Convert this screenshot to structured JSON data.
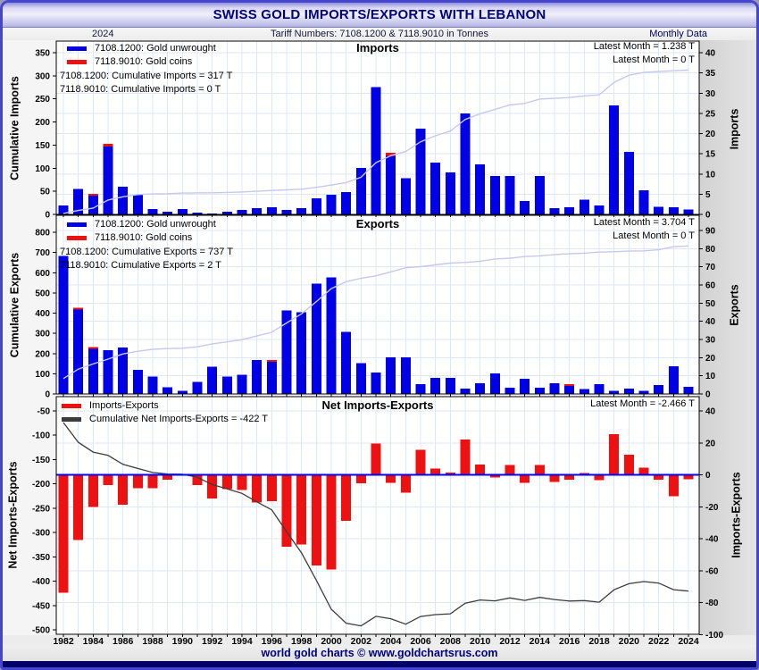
{
  "header": {
    "title": "SWISS GOLD IMPORTS/EXPORTS WITH LEBANON"
  },
  "subheader": {
    "year": "2024",
    "tariff": "Tariff Numbers: 7108.1200 & 7118.9010 in Tonnes",
    "frequency": "Monthly Data"
  },
  "footer": {
    "credit": "world gold charts © www.goldchartsrus.com"
  },
  "colors": {
    "gold_unwrought": "#0000e6",
    "gold_coins": "#ee1111",
    "net_bars": "#ee1111",
    "cumulative_light": "#c8c8ee",
    "cumulative_dark": "#3c3c3c",
    "zero_line": "#0000ff",
    "grid": "#dce8f5",
    "navy": "#000080"
  },
  "years": [
    1982,
    1983,
    1984,
    1985,
    1986,
    1987,
    1988,
    1989,
    1990,
    1991,
    1992,
    1993,
    1994,
    1995,
    1996,
    1997,
    1998,
    1999,
    2000,
    2001,
    2002,
    2003,
    2004,
    2005,
    2006,
    2007,
    2008,
    2009,
    2010,
    2011,
    2012,
    2013,
    2014,
    2015,
    2016,
    2017,
    2018,
    2019,
    2020,
    2021,
    2022,
    2023,
    2024
  ],
  "x_tick_labels": [
    "1982",
    "1984",
    "1986",
    "1988",
    "1990",
    "1992",
    "1994",
    "1996",
    "1998",
    "2000",
    "2002",
    "2004",
    "2006",
    "2008",
    "2010",
    "2012",
    "2014",
    "2016",
    "2018",
    "2020",
    "2022",
    "2024"
  ],
  "chart_data": [
    {
      "type": "bar",
      "title": "Imports",
      "legend": [
        {
          "label": "7108.1200: Gold unwrought",
          "color_key": "gold_unwrought"
        },
        {
          "label": "7118.9010: Gold coins",
          "color_key": "gold_coins"
        }
      ],
      "annotations": [
        "7108.1200: Cumulative Imports = 317 T",
        "7118.9010: Cumulative Imports = 0 T"
      ],
      "latest": [
        "Latest Month = 1.238 T",
        "Latest Month = 0 T"
      ],
      "left_axis": {
        "label": "Cumulative Imports",
        "min": 0,
        "max": 350,
        "step": 50
      },
      "right_axis": {
        "label": "Imports",
        "min": 0,
        "max": 40,
        "step": 5
      },
      "series": [
        {
          "name": "7108.1200 Gold unwrought (T)",
          "values": [
            2.2,
            6.3,
            4.6,
            16.8,
            6.9,
            4.9,
            1.3,
            0.7,
            1.3,
            0.4,
            0.2,
            0.7,
            1.1,
            1.5,
            1.8,
            1.1,
            1.5,
            4.0,
            4.9,
            5.5,
            11.5,
            31.5,
            14.5,
            9.0,
            21.2,
            12.8,
            10.4,
            25.0,
            12.4,
            9.5,
            9.5,
            3.3,
            9.5,
            1.5,
            1.8,
            3.6,
            2.2,
            27.0,
            15.5,
            6.0,
            1.9,
            1.8,
            1.2
          ]
        },
        {
          "name": "7118.9010 Gold coins (T)",
          "values": [
            0,
            0,
            0.5,
            0.7,
            0,
            0,
            0,
            0,
            0,
            0,
            0,
            0,
            0,
            0,
            0,
            0,
            0,
            0,
            0,
            0,
            0,
            0,
            0.7,
            0,
            0,
            0,
            0,
            0,
            0,
            0,
            0,
            0,
            0,
            0,
            0,
            0,
            0,
            0,
            0,
            0,
            0,
            0,
            0
          ]
        }
      ],
      "cumulative_total": 317
    },
    {
      "type": "bar",
      "title": "Exports",
      "legend": [
        {
          "label": "7108.1200: Gold unwrought",
          "color_key": "gold_unwrought"
        },
        {
          "label": "7118.9010: Gold coins",
          "color_key": "gold_coins"
        }
      ],
      "annotations": [
        "7108.1200: Cumulative Exports = 737 T",
        "7118.9010: Cumulative Exports = 2 T"
      ],
      "latest": [
        "Latest Month = 3.704 T",
        "Latest Month = 0 T"
      ],
      "left_axis": {
        "label": "Cumulative Exports",
        "min": 0,
        "max": 800,
        "step": 100
      },
      "right_axis": {
        "label": "Exports",
        "min": 0,
        "max": 90,
        "step": 10
      },
      "series": [
        {
          "name": "7108.1200 Gold unwrought (T)",
          "values": [
            76.0,
            46.4,
            24.8,
            24.0,
            25.6,
            13.3,
            9.6,
            3.8,
            1.8,
            6.7,
            15.0,
            9.6,
            10.5,
            18.8,
            17.7,
            46.1,
            45.0,
            60.7,
            64.1,
            34.3,
            16.9,
            11.8,
            20.2,
            20.2,
            5.4,
            8.9,
            8.9,
            3.0,
            5.9,
            11.3,
            3.4,
            8.4,
            3.4,
            5.9,
            4.5,
            2.6,
            5.5,
            1.6,
            3.0,
            1.6,
            5.0,
            15.3,
            4.0
          ]
        },
        {
          "name": "7118.9010 Gold coins (T)",
          "values": [
            0,
            0.6,
            0.5,
            0,
            0,
            0,
            0,
            0,
            0,
            0,
            0,
            0,
            0,
            0,
            0.5,
            0,
            0,
            0,
            0,
            0,
            0,
            0,
            0,
            0,
            0,
            0,
            0,
            0,
            0,
            0,
            0,
            0,
            0,
            0,
            0.4,
            0,
            0,
            0,
            0,
            0,
            0,
            0,
            0
          ]
        }
      ],
      "cumulative_total": 737
    },
    {
      "type": "bar",
      "title": "Net Imports-Exports",
      "legend": [
        {
          "label": "Imports-Exports",
          "color_key": "net_bars"
        },
        {
          "label": "Cumulative Net Imports-Exports = -422 T",
          "color_key": "cumulative_dark"
        }
      ],
      "latest": [
        "Latest Month = -2.466 T"
      ],
      "left_axis": {
        "label": "Net Imports-Exports",
        "min": -500,
        "max": -50,
        "step": 50
      },
      "right_axis": {
        "label": "Imports-Exports",
        "min": -100,
        "max": 40,
        "step": 20
      },
      "derived": "net = (imports unwrought + coins) - (exports unwrought + coins), per year",
      "cumulative_total": -422
    }
  ]
}
